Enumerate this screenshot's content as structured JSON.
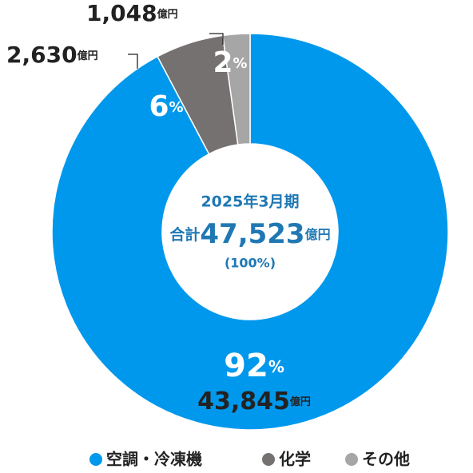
{
  "chart_data": {
    "type": "donut",
    "categories": [
      "空調・冷凍機",
      "化学",
      "その他"
    ],
    "values": [
      43845,
      2630,
      1048
    ],
    "value_labels": [
      "43,845",
      "2,630",
      "1,048"
    ],
    "percentages": [
      92,
      6,
      2
    ],
    "percent_unit": "%",
    "amount_unit": "億円",
    "colors": [
      "#0098ec",
      "#767171",
      "#a6a6a6"
    ],
    "center": {
      "period": "2025年3月期",
      "total_prefix": "合計",
      "total": 47523,
      "total_label": "47,523",
      "total_unit": "億円",
      "share": "(100%)"
    },
    "legend": "bottom"
  }
}
